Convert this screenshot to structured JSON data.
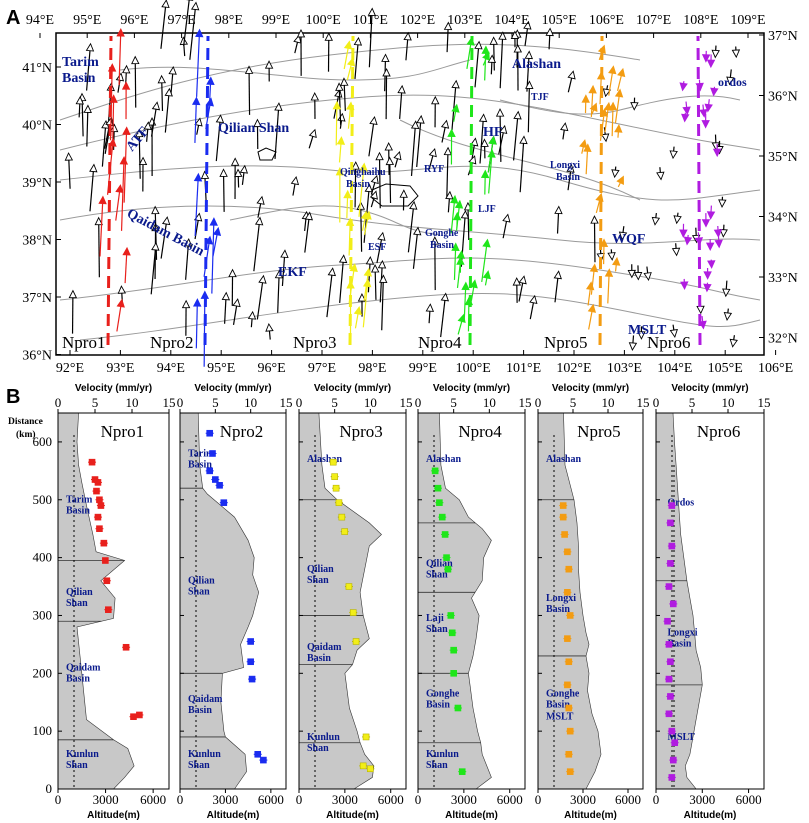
{
  "panel_a": {
    "label": "A",
    "lon_labels_top": [
      "94°E",
      "95°E",
      "96°E",
      "97°E",
      "98°E",
      "99°E",
      "100°E",
      "101°E",
      "102°E",
      "103°E",
      "104°E",
      "105°E",
      "106°E",
      "107°E",
      "108°E",
      "109°E"
    ],
    "lon_labels_bottom": [
      "92°E",
      "93°E",
      "94°E",
      "95°E",
      "96°E",
      "97°E",
      "98°E",
      "99°E",
      "100°E",
      "101°E",
      "102°E",
      "103°E",
      "104°E",
      "105°E",
      "106°E"
    ],
    "lat_labels_left": [
      "41°N",
      "40°N",
      "39°N",
      "38°N",
      "37°N",
      "36°N"
    ],
    "lat_labels_right": [
      "37°N",
      "36°N",
      "35°N",
      "34°N",
      "33°N",
      "32°N"
    ],
    "map_labels": {
      "tarim": "Tarim Basin",
      "atf": "ATF",
      "qilian": "Qilian Shan",
      "qaidam": "Qaidam Basin",
      "ekf": "EKF",
      "alashan": "Alashan",
      "ordos": "ordos",
      "tjf": "TJF",
      "hf": "HF",
      "ryf": "RYF",
      "qinghai": "Qinghaihu Basin",
      "ljf": "LJF",
      "gonghe": "Gonghe Basin",
      "esf": "ESF",
      "longxi": "Longxi Basin",
      "wqf": "WQF",
      "mslt": "MSLT"
    },
    "profiles": [
      {
        "name": "Npro1",
        "color": "#e8201c"
      },
      {
        "name": "Npro2",
        "color": "#1a2cf0"
      },
      {
        "name": "Npro3",
        "color": "#f2ee18"
      },
      {
        "name": "Npro4",
        "color": "#1fe61a"
      },
      {
        "name": "Npro5",
        "color": "#f39c12"
      },
      {
        "name": "Npro6",
        "color": "#b01ce0"
      }
    ]
  },
  "panel_b": {
    "label": "B",
    "distance_label": "Distance",
    "distance_unit": "(km)",
    "velocity_label": "Velocity (mm/yr)",
    "altitude_label": "Altitude(m)",
    "velocity_ticks": [
      "0",
      "5",
      "10",
      "15"
    ],
    "altitude_ticks": [
      "0",
      "3000",
      "6000"
    ],
    "distance_ticks": [
      "0",
      "100",
      "200",
      "300",
      "400",
      "500",
      "600"
    ]
  },
  "chart_data": [
    {
      "type": "scatter",
      "title": "Npro1",
      "xlabel": "Velocity (mm/yr) / Altitude(m)",
      "ylabel": "Distance (km)",
      "xlim": [
        0,
        15
      ],
      "ylim": [
        0,
        650
      ],
      "color": "#e8201c",
      "velocity": [
        {
          "d": 565,
          "v": 4.6
        },
        {
          "d": 535,
          "v": 5.0
        },
        {
          "d": 530,
          "v": 5.4
        },
        {
          "d": 515,
          "v": 5.2
        },
        {
          "d": 500,
          "v": 5.6
        },
        {
          "d": 490,
          "v": 5.8
        },
        {
          "d": 470,
          "v": 5.4
        },
        {
          "d": 450,
          "v": 5.6
        },
        {
          "d": 425,
          "v": 6.2
        },
        {
          "d": 395,
          "v": 6.4
        },
        {
          "d": 360,
          "v": 6.6
        },
        {
          "d": 310,
          "v": 6.8
        },
        {
          "d": 245,
          "v": 9.2
        },
        {
          "d": 125,
          "v": 10.2
        },
        {
          "d": 128,
          "v": 11.0
        }
      ],
      "regions": [
        {
          "name": "Tarim Basin",
          "d": 495
        },
        {
          "name": "Qilian Shan",
          "d": 335
        },
        {
          "name": "Qaidam Basin",
          "d": 205
        },
        {
          "name": "Kunlun Shan",
          "d": 55
        }
      ]
    },
    {
      "type": "scatter",
      "title": "Npro2",
      "xlim": [
        0,
        15
      ],
      "ylim": [
        0,
        650
      ],
      "color": "#1a2cf0",
      "velocity": [
        {
          "d": 615,
          "v": 4.2
        },
        {
          "d": 580,
          "v": 4.6
        },
        {
          "d": 550,
          "v": 4.2
        },
        {
          "d": 535,
          "v": 5.0
        },
        {
          "d": 525,
          "v": 5.6
        },
        {
          "d": 495,
          "v": 6.2
        },
        {
          "d": 255,
          "v": 10.0
        },
        {
          "d": 220,
          "v": 10.0
        },
        {
          "d": 190,
          "v": 10.2
        },
        {
          "d": 60,
          "v": 11.0
        },
        {
          "d": 50,
          "v": 11.8
        }
      ],
      "regions": [
        {
          "name": "Tarim Basin",
          "d": 575
        },
        {
          "name": "Qilian Shan",
          "d": 355
        },
        {
          "name": "Qaidam Basin",
          "d": 150
        },
        {
          "name": "Kunlun Shan",
          "d": 55
        }
      ]
    },
    {
      "type": "scatter",
      "title": "Npro3",
      "xlim": [
        0,
        15
      ],
      "ylim": [
        0,
        650
      ],
      "color": "#f2ee18",
      "velocity": [
        {
          "d": 565,
          "v": 4.8
        },
        {
          "d": 540,
          "v": 5.0
        },
        {
          "d": 520,
          "v": 5.2
        },
        {
          "d": 495,
          "v": 5.6
        },
        {
          "d": 470,
          "v": 6.0
        },
        {
          "d": 445,
          "v": 6.4
        },
        {
          "d": 350,
          "v": 7.0
        },
        {
          "d": 305,
          "v": 7.6
        },
        {
          "d": 255,
          "v": 8.0
        },
        {
          "d": 40,
          "v": 9.0
        },
        {
          "d": 90,
          "v": 9.4
        },
        {
          "d": 35,
          "v": 10.0
        }
      ],
      "regions": [
        {
          "name": "Alashan",
          "d": 565
        },
        {
          "name": "Qilian Shan",
          "d": 375
        },
        {
          "name": "Qaidam Basin",
          "d": 240
        },
        {
          "name": "Kunlun Shan",
          "d": 85
        }
      ]
    },
    {
      "type": "scatter",
      "title": "Npro4",
      "xlim": [
        0,
        15
      ],
      "ylim": [
        0,
        650
      ],
      "color": "#1fe61a",
      "velocity": [
        {
          "d": 550,
          "v": 2.4
        },
        {
          "d": 520,
          "v": 2.8
        },
        {
          "d": 495,
          "v": 3.0
        },
        {
          "d": 470,
          "v": 3.4
        },
        {
          "d": 440,
          "v": 3.8
        },
        {
          "d": 400,
          "v": 4.0
        },
        {
          "d": 380,
          "v": 4.2
        },
        {
          "d": 300,
          "v": 4.6
        },
        {
          "d": 270,
          "v": 4.8
        },
        {
          "d": 240,
          "v": 5.0
        },
        {
          "d": 200,
          "v": 5.0
        },
        {
          "d": 140,
          "v": 5.6
        },
        {
          "d": 30,
          "v": 6.2
        }
      ],
      "regions": [
        {
          "name": "Alashan",
          "d": 565
        },
        {
          "name": "Qilian Shan",
          "d": 385
        },
        {
          "name": "Laji Shan",
          "d": 290
        },
        {
          "name": "Gonghe Basin",
          "d": 160
        },
        {
          "name": "Kunlun Shan",
          "d": 55
        }
      ]
    },
    {
      "type": "scatter",
      "title": "Npro5",
      "xlim": [
        0,
        15
      ],
      "ylim": [
        0,
        650
      ],
      "color": "#f39c12",
      "velocity": [
        {
          "d": 490,
          "v": 3.6
        },
        {
          "d": 470,
          "v": 3.6
        },
        {
          "d": 440,
          "v": 3.8
        },
        {
          "d": 410,
          "v": 4.2
        },
        {
          "d": 380,
          "v": 4.4
        },
        {
          "d": 340,
          "v": 4.2
        },
        {
          "d": 300,
          "v": 4.6
        },
        {
          "d": 260,
          "v": 4.2
        },
        {
          "d": 220,
          "v": 4.4
        },
        {
          "d": 180,
          "v": 4.2
        },
        {
          "d": 140,
          "v": 4.4
        },
        {
          "d": 100,
          "v": 4.6
        },
        {
          "d": 60,
          "v": 4.4
        },
        {
          "d": 30,
          "v": 4.6
        }
      ],
      "regions": [
        {
          "name": "Alashan",
          "d": 565
        },
        {
          "name": "Longxi Basin",
          "d": 325
        },
        {
          "name": "Gonghe Basin",
          "d": 160
        },
        {
          "name": "MSLT",
          "d": 120
        }
      ]
    },
    {
      "type": "scatter",
      "title": "Npro6",
      "xlim": [
        0,
        15
      ],
      "ylim": [
        0,
        650
      ],
      "color": "#b01ce0",
      "velocity": [
        {
          "d": 490,
          "v": 2.2
        },
        {
          "d": 460,
          "v": 2.0
        },
        {
          "d": 420,
          "v": 2.2
        },
        {
          "d": 390,
          "v": 2.0
        },
        {
          "d": 350,
          "v": 1.8
        },
        {
          "d": 320,
          "v": 2.4
        },
        {
          "d": 290,
          "v": 1.6
        },
        {
          "d": 250,
          "v": 1.8
        },
        {
          "d": 220,
          "v": 2.0
        },
        {
          "d": 190,
          "v": 1.8
        },
        {
          "d": 160,
          "v": 2.0
        },
        {
          "d": 130,
          "v": 1.8
        },
        {
          "d": 100,
          "v": 2.2
        },
        {
          "d": 80,
          "v": 2.6
        },
        {
          "d": 50,
          "v": 2.4
        },
        {
          "d": 20,
          "v": 2.2
        }
      ],
      "regions": [
        {
          "name": "Ordos",
          "d": 490
        },
        {
          "name": "Longxi Basin",
          "d": 265
        },
        {
          "name": "MSLT",
          "d": 85
        }
      ]
    }
  ]
}
